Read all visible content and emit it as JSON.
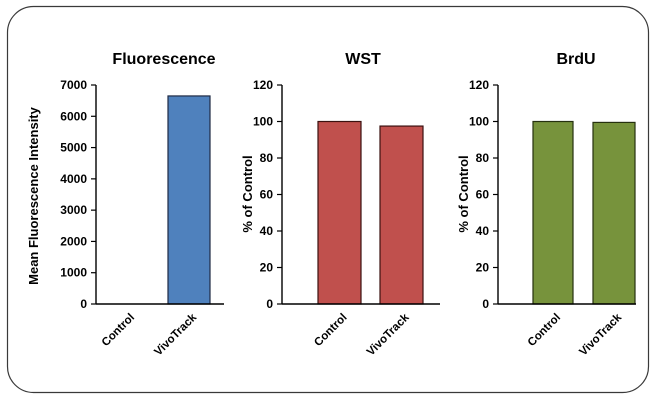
{
  "chart_data": [
    {
      "type": "bar",
      "title": "Fluorescence",
      "ylabel": "Mean Fluorescence Intensity",
      "categories": [
        "Control",
        "VivoTrack"
      ],
      "values": [
        0,
        6650
      ],
      "ylim": [
        0,
        7000
      ],
      "yticks": [
        0,
        1000,
        2000,
        3000,
        4000,
        5000,
        6000,
        7000
      ],
      "bar_colors": [
        "#4f81bd",
        "#4f81bd"
      ],
      "edge_color": "#1f2a44",
      "grid": false
    },
    {
      "type": "bar",
      "title": "WST",
      "ylabel": "% of Control",
      "categories": [
        "Control",
        "VivoTrack"
      ],
      "values": [
        100,
        97.5
      ],
      "ylim": [
        0,
        120
      ],
      "yticks": [
        0,
        20,
        40,
        60,
        80,
        100,
        120
      ],
      "bar_colors": [
        "#c0504d",
        "#c0504d"
      ],
      "edge_color": "#3b1110",
      "grid": false
    },
    {
      "type": "bar",
      "title": "BrdU",
      "ylabel": "% of Control",
      "categories": [
        "Control",
        "VivoTrack"
      ],
      "values": [
        100,
        99.5
      ],
      "ylim": [
        0,
        120
      ],
      "yticks": [
        0,
        20,
        40,
        60,
        80,
        100,
        120
      ],
      "bar_colors": [
        "#77933c",
        "#77933c"
      ],
      "edge_color": "#26310f",
      "grid": false
    }
  ]
}
